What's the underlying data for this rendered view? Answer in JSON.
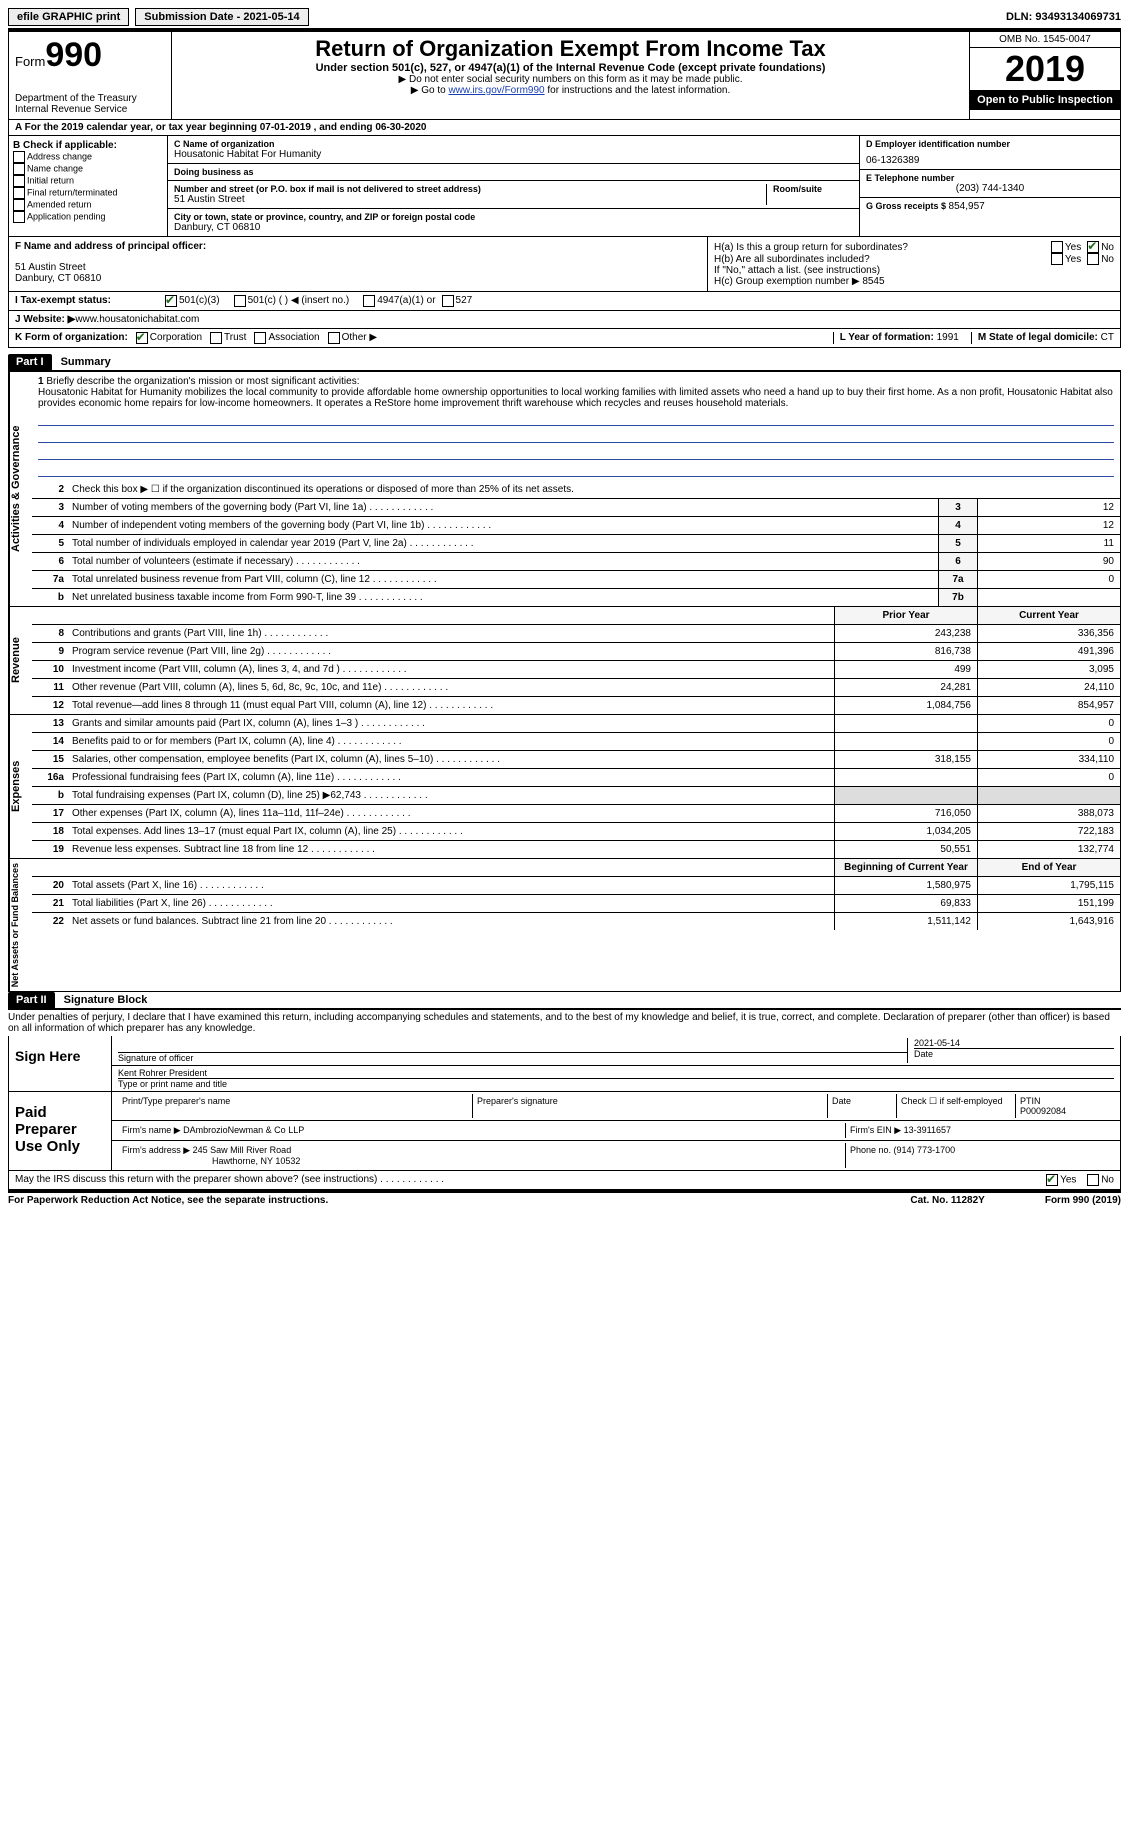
{
  "topbar": {
    "efile": "efile GRAPHIC print",
    "submission_label": "Submission Date - ",
    "submission_date": "2021-05-14",
    "dln_label": "DLN: ",
    "dln": "93493134069731"
  },
  "header": {
    "form_word": "Form",
    "form_num": "990",
    "dept1": "Department of the Treasury",
    "dept2": "Internal Revenue Service",
    "title": "Return of Organization Exempt From Income Tax",
    "sub": "Under section 501(c), 527, or 4947(a)(1) of the Internal Revenue Code (except private foundations)",
    "note1": "Do not enter social security numbers on this form as it may be made public.",
    "note2_pre": "Go to ",
    "note2_link": "www.irs.gov/Form990",
    "note2_post": " for instructions and the latest information.",
    "omb": "OMB No. 1545-0047",
    "year": "2019",
    "open": "Open to Public Inspection"
  },
  "row_a": {
    "text": "A For the 2019 calendar year, or tax year beginning 07-01-2019    , and ending 06-30-2020"
  },
  "col_b": {
    "hdr": "B Check if applicable:",
    "items": [
      "Address change",
      "Name change",
      "Initial return",
      "Final return/terminated",
      "Amended return",
      "Application pending"
    ]
  },
  "col_c": {
    "name_lab": "C Name of organization",
    "name": "Housatonic Habitat For Humanity",
    "dba_lab": "Doing business as",
    "addr_lab": "Number and street (or P.O. box if mail is not delivered to street address)",
    "room_lab": "Room/suite",
    "addr": "51 Austin Street",
    "city_lab": "City or town, state or province, country, and ZIP or foreign postal code",
    "city": "Danbury, CT  06810"
  },
  "col_right": {
    "d_lab": "D Employer identification number",
    "d_val": "06-1326389",
    "e_lab": "E Telephone number",
    "e_val": "(203) 744-1340",
    "g_lab": "G Gross receipts $ ",
    "g_val": "854,957"
  },
  "row_f": {
    "f_lab": "F Name and address of principal officer:",
    "f_addr1": "51 Austin Street",
    "f_addr2": "Danbury, CT  06810",
    "ha_lab": "H(a)  Is this a group return for subordinates?",
    "hb_lab": "H(b)  Are all subordinates included?",
    "hb_note": "If \"No,\" attach a list. (see instructions)",
    "hc_lab": "H(c)  Group exemption number ▶  ",
    "hc_val": "8545",
    "yes": "Yes",
    "no": "No"
  },
  "row_i": {
    "lab": "I  Tax-exempt status:",
    "o1": "501(c)(3)",
    "o2": "501(c) (   ) ◀ (insert no.)",
    "o3": "4947(a)(1) or",
    "o4": "527"
  },
  "row_j": {
    "lab": "J  Website: ▶",
    "val": " www.housatonichabitat.com"
  },
  "row_k": {
    "lab": "K Form of organization:",
    "o1": "Corporation",
    "o2": "Trust",
    "o3": "Association",
    "o4": "Other ▶",
    "l_lab": "L Year of formation: ",
    "l_val": "1991",
    "m_lab": "M State of legal domicile: ",
    "m_val": "CT"
  },
  "part1": {
    "hdr": "Part I",
    "title": "Summary"
  },
  "mission": {
    "num": "1",
    "lab": "Briefly describe the organization's mission or most significant activities:",
    "text": "Housatonic Habitat for Humanity mobilizes the local community to provide affordable home ownership opportunities to local working families with limited assets who need a hand up to buy their first home. As a non profit, Housatonic Habitat also provides economic home repairs for low-income homeowners. It operates a ReStore home improvement thrift warehouse which recycles and reuses household materials."
  },
  "governance": {
    "side": "Activities & Governance",
    "r2": "Check this box ▶ ☐ if the organization discontinued its operations or disposed of more than 25% of its net assets.",
    "rows": [
      {
        "n": "3",
        "d": "Number of voting members of the governing body (Part VI, line 1a)",
        "b": "3",
        "v": "12"
      },
      {
        "n": "4",
        "d": "Number of independent voting members of the governing body (Part VI, line 1b)",
        "b": "4",
        "v": "12"
      },
      {
        "n": "5",
        "d": "Total number of individuals employed in calendar year 2019 (Part V, line 2a)",
        "b": "5",
        "v": "11"
      },
      {
        "n": "6",
        "d": "Total number of volunteers (estimate if necessary)",
        "b": "6",
        "v": "90"
      },
      {
        "n": "7a",
        "d": "Total unrelated business revenue from Part VIII, column (C), line 12",
        "b": "7a",
        "v": "0"
      },
      {
        "n": "b",
        "d": "Net unrelated business taxable income from Form 990-T, line 39",
        "b": "7b",
        "v": ""
      }
    ]
  },
  "revenue": {
    "side": "Revenue",
    "hdr_prior": "Prior Year",
    "hdr_curr": "Current Year",
    "rows": [
      {
        "n": "8",
        "d": "Contributions and grants (Part VIII, line 1h)",
        "p": "243,238",
        "c": "336,356"
      },
      {
        "n": "9",
        "d": "Program service revenue (Part VIII, line 2g)",
        "p": "816,738",
        "c": "491,396"
      },
      {
        "n": "10",
        "d": "Investment income (Part VIII, column (A), lines 3, 4, and 7d )",
        "p": "499",
        "c": "3,095"
      },
      {
        "n": "11",
        "d": "Other revenue (Part VIII, column (A), lines 5, 6d, 8c, 9c, 10c, and 11e)",
        "p": "24,281",
        "c": "24,110"
      },
      {
        "n": "12",
        "d": "Total revenue—add lines 8 through 11 (must equal Part VIII, column (A), line 12)",
        "p": "1,084,756",
        "c": "854,957"
      }
    ]
  },
  "expenses": {
    "side": "Expenses",
    "rows": [
      {
        "n": "13",
        "d": "Grants and similar amounts paid (Part IX, column (A), lines 1–3 )",
        "p": "",
        "c": "0"
      },
      {
        "n": "14",
        "d": "Benefits paid to or for members (Part IX, column (A), line 4)",
        "p": "",
        "c": "0"
      },
      {
        "n": "15",
        "d": "Salaries, other compensation, employee benefits (Part IX, column (A), lines 5–10)",
        "p": "318,155",
        "c": "334,110"
      },
      {
        "n": "16a",
        "d": "Professional fundraising fees (Part IX, column (A), line 11e)",
        "p": "",
        "c": "0"
      },
      {
        "n": "b",
        "d": "Total fundraising expenses (Part IX, column (D), line 25) ▶62,743",
        "p": "—gray—",
        "c": "—gray—"
      },
      {
        "n": "17",
        "d": "Other expenses (Part IX, column (A), lines 11a–11d, 11f–24e)",
        "p": "716,050",
        "c": "388,073"
      },
      {
        "n": "18",
        "d": "Total expenses. Add lines 13–17 (must equal Part IX, column (A), line 25)",
        "p": "1,034,205",
        "c": "722,183"
      },
      {
        "n": "19",
        "d": "Revenue less expenses. Subtract line 18 from line 12",
        "p": "50,551",
        "c": "132,774"
      }
    ]
  },
  "netassets": {
    "side": "Net Assets or Fund Balances",
    "hdr_prior": "Beginning of Current Year",
    "hdr_curr": "End of Year",
    "rows": [
      {
        "n": "20",
        "d": "Total assets (Part X, line 16)",
        "p": "1,580,975",
        "c": "1,795,115"
      },
      {
        "n": "21",
        "d": "Total liabilities (Part X, line 26)",
        "p": "69,833",
        "c": "151,199"
      },
      {
        "n": "22",
        "d": "Net assets or fund balances. Subtract line 21 from line 20",
        "p": "1,511,142",
        "c": "1,643,916"
      }
    ]
  },
  "part2": {
    "hdr": "Part II",
    "title": "Signature Block",
    "decl": "Under penalties of perjury, I declare that I have examined this return, including accompanying schedules and statements, and to the best of my knowledge and belief, it is true, correct, and complete. Declaration of preparer (other than officer) is based on all information of which preparer has any knowledge."
  },
  "sign": {
    "left": "Sign Here",
    "sig_lab": "Signature of officer",
    "date": "2021-05-14",
    "date_lab": "Date",
    "name": "Kent Rohrer  President",
    "name_lab": "Type or print name and title"
  },
  "preparer": {
    "left": "Paid Preparer Use Only",
    "print_lab": "Print/Type preparer's name",
    "sig_lab": "Preparer's signature",
    "date_lab": "Date",
    "check_lab": "Check ☐ if self-employed",
    "ptin_lab": "PTIN",
    "ptin": "P00092084",
    "firm_name_lab": "Firm's name    ▶ ",
    "firm_name": "DAmbrozioNewman & Co LLP",
    "firm_ein_lab": "Firm's EIN ▶ ",
    "firm_ein": "13-3911657",
    "firm_addr_lab": "Firm's address ▶ ",
    "firm_addr1": "245 Saw Mill River Road",
    "firm_addr2": "Hawthorne, NY  10532",
    "phone_lab": "Phone no. ",
    "phone": "(914) 773-1700"
  },
  "discuss": {
    "q": "May the IRS discuss this return with the preparer shown above? (see instructions)",
    "yes": "Yes",
    "no": "No"
  },
  "footer": {
    "left": "For Paperwork Reduction Act Notice, see the separate instructions.",
    "mid": "Cat. No. 11282Y",
    "right": "Form 990 (2019)"
  }
}
